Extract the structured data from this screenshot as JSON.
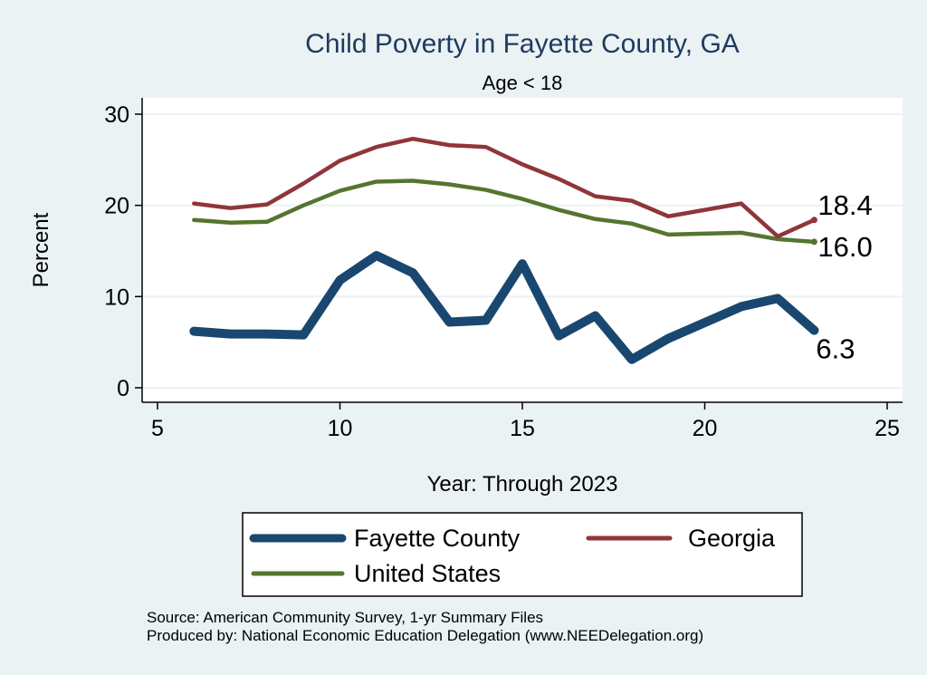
{
  "chart_data": {
    "type": "line",
    "title": "Child Poverty in Fayette County, GA",
    "subtitle": "Age < 18",
    "xlabel": "Year: Through 2023",
    "ylabel": "Percent",
    "xlim": [
      5,
      25
    ],
    "ylim": [
      0,
      30
    ],
    "xticks": [
      "5",
      "10",
      "15",
      "20",
      "25"
    ],
    "yticks": [
      "0",
      "10",
      "20",
      "30"
    ],
    "grid": true,
    "x": [
      6,
      7,
      8,
      9,
      10,
      11,
      12,
      13,
      14,
      15,
      16,
      17,
      18,
      19,
      21,
      22,
      23
    ],
    "series": [
      {
        "name": "Fayette County",
        "color": "#1a476f",
        "values": [
          6.2,
          5.9,
          5.9,
          5.8,
          11.8,
          14.5,
          12.6,
          7.2,
          7.4,
          13.6,
          5.7,
          7.9,
          3.1,
          5.4,
          8.9,
          9.8,
          6.3
        ],
        "end_label": "6.3"
      },
      {
        "name": "Georgia",
        "color": "#90353b",
        "values": [
          20.2,
          19.7,
          20.1,
          22.4,
          24.9,
          26.4,
          27.3,
          26.6,
          26.4,
          24.5,
          22.9,
          21.0,
          20.5,
          18.8,
          20.2,
          16.6,
          18.4
        ],
        "end_label": "18.4"
      },
      {
        "name": "United States",
        "color": "#55752f",
        "values": [
          18.4,
          18.1,
          18.2,
          20.0,
          21.6,
          22.6,
          22.7,
          22.3,
          21.7,
          20.7,
          19.5,
          18.5,
          18.0,
          16.8,
          17.0,
          16.3,
          16.0
        ],
        "end_label": "16.0"
      }
    ],
    "legend": {
      "placement": "bottom",
      "entries": [
        "Fayette County",
        "Georgia",
        "United States"
      ]
    }
  },
  "notes": {
    "source": "Source: American Community Survey, 1-yr Summary Files",
    "produced_by": "Produced by: National Economic Education Delegation (www.NEEDelegation.org)"
  }
}
